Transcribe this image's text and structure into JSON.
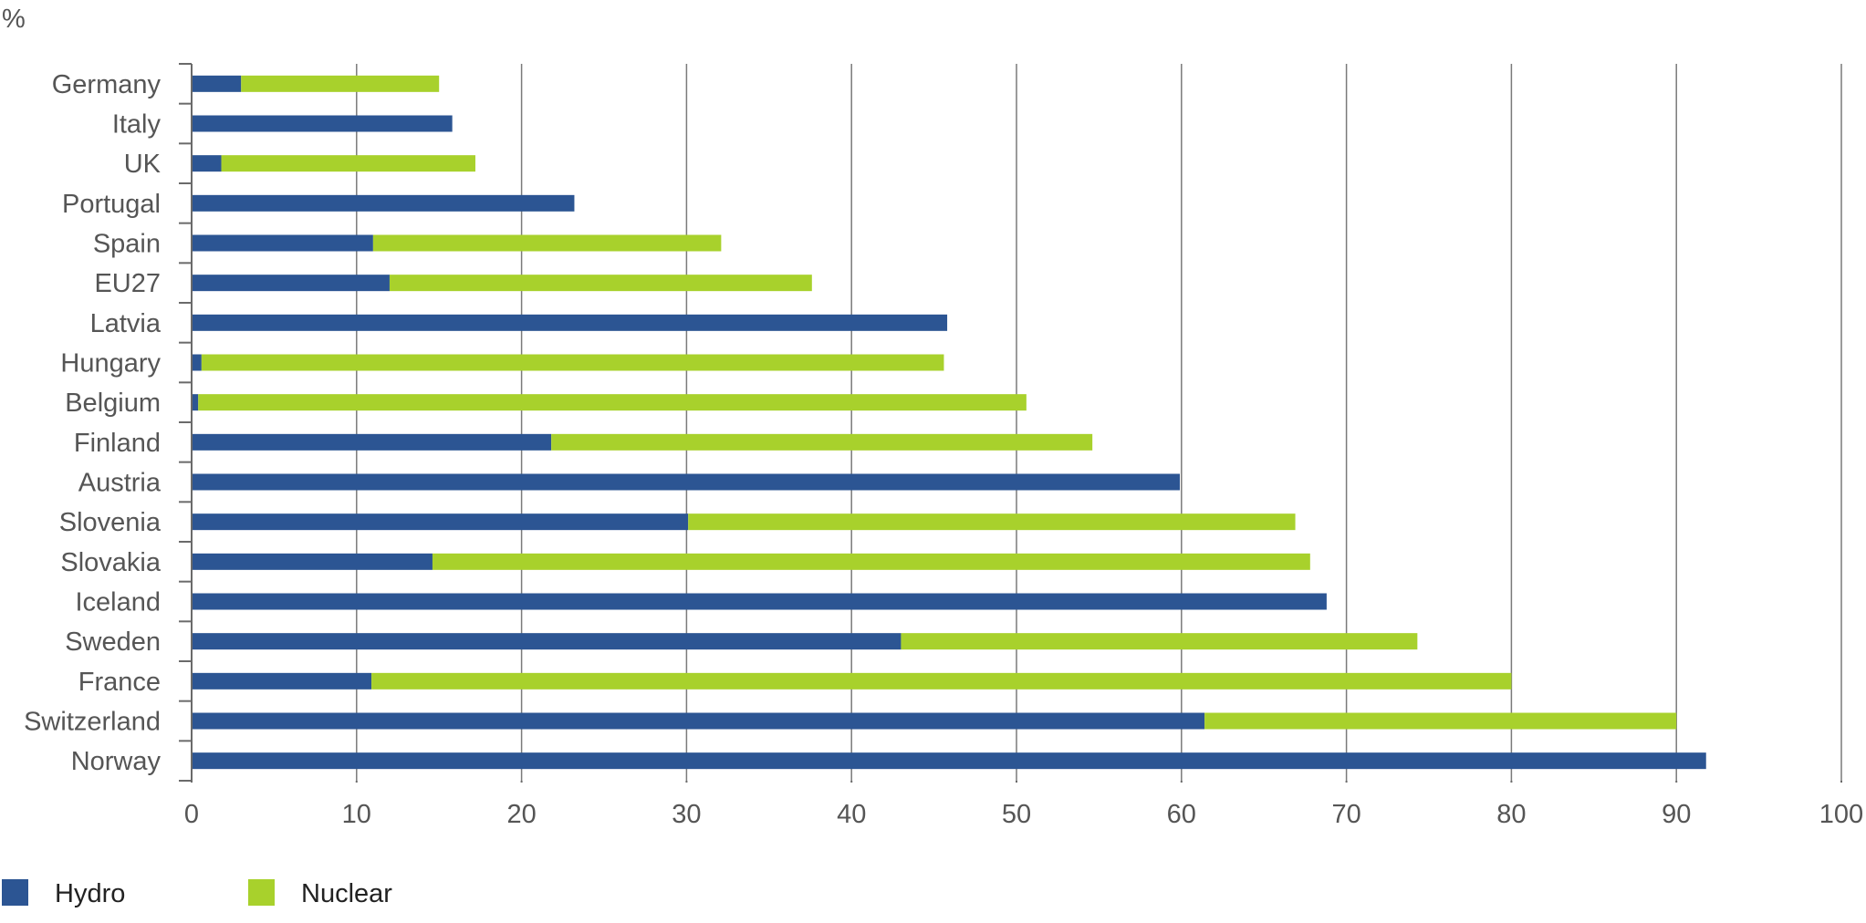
{
  "chart_data": {
    "type": "bar",
    "orientation": "horizontal",
    "stacked": true,
    "unit_label": "%",
    "categories": [
      "Germany",
      "Italy",
      "UK",
      "Portugal",
      "Spain",
      "EU27",
      "Latvia",
      "Hungary",
      "Belgium",
      "Finland",
      "Austria",
      "Slovenia",
      "Slovakia",
      "Iceland",
      "Sweden",
      "France",
      "Switzerland",
      "Norway"
    ],
    "series": [
      {
        "name": "Hydro",
        "color": "#2c5593",
        "values": [
          3.0,
          15.8,
          1.8,
          23.2,
          11.0,
          12.0,
          45.8,
          0.6,
          0.4,
          21.8,
          59.9,
          30.1,
          14.6,
          68.8,
          43.0,
          10.9,
          61.4,
          91.8
        ]
      },
      {
        "name": "Nuclear",
        "color": "#a8d12c",
        "values": [
          12.0,
          0,
          15.4,
          0,
          21.1,
          25.6,
          0,
          45.0,
          50.2,
          32.8,
          0,
          36.8,
          53.2,
          0,
          31.3,
          69.1,
          28.6,
          0
        ]
      }
    ],
    "xlim": [
      0,
      100
    ],
    "x_ticks": [
      "0",
      "10",
      "20",
      "30",
      "40",
      "50",
      "60",
      "70",
      "80",
      "90",
      "100"
    ],
    "grid": true,
    "legend_position": "bottom-left"
  }
}
